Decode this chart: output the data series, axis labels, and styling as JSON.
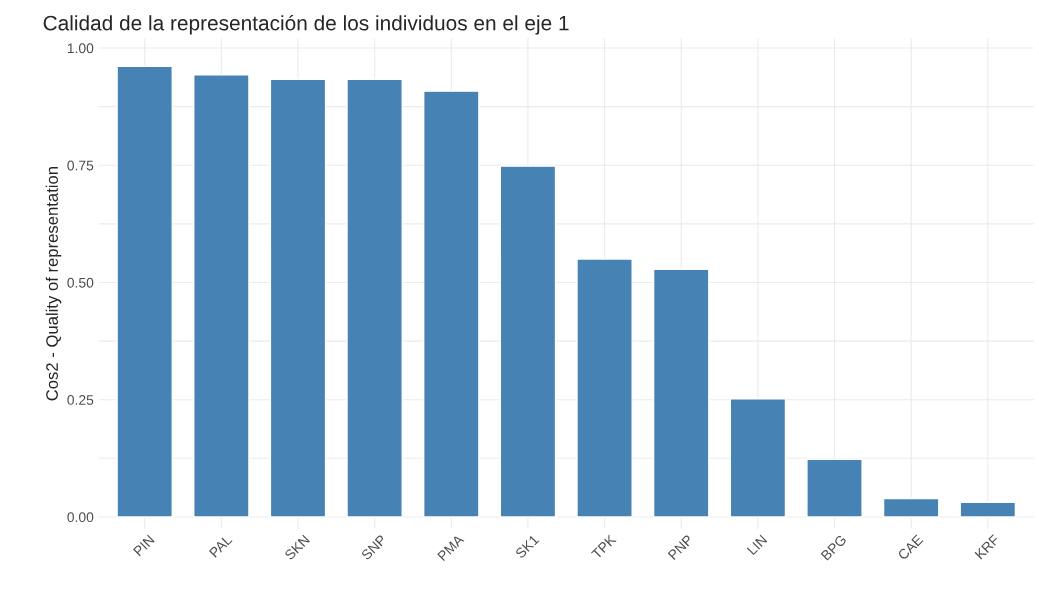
{
  "chart_data": {
    "type": "bar",
    "title": "Calidad de la representación de los individuos en el eje 1",
    "ylabel": "Cos2 - Quality of representation",
    "categories": [
      "PIN",
      "PAL",
      "SKN",
      "SNP",
      "PMA",
      "SK1",
      "TPK",
      "PNP",
      "LIN",
      "BPG",
      "CAE",
      "KRF"
    ],
    "values": [
      0.961,
      0.943,
      0.933,
      0.933,
      0.908,
      0.748,
      0.55,
      0.528,
      0.252,
      0.123,
      0.039,
      0.031
    ],
    "color": "#4682b4",
    "ylim": [
      -0.025,
      1.02
    ],
    "yticks": [
      {
        "value": 0,
        "label": "0.00"
      },
      {
        "value": 0.25,
        "label": "0.25"
      },
      {
        "value": 0.5,
        "label": "0.50"
      },
      {
        "value": 0.75,
        "label": "0.75"
      },
      {
        "value": 1,
        "label": "1.00"
      }
    ],
    "grid": true
  }
}
